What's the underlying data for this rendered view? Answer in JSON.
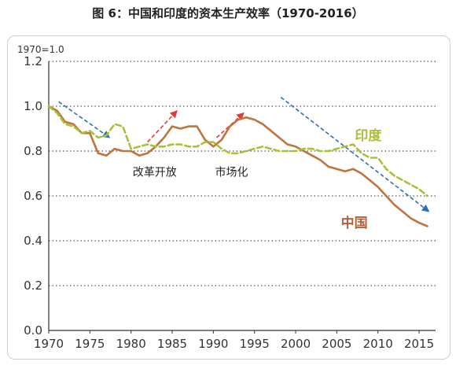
{
  "title": "图 6：中国和印度的资本生产效率（1970-2016）",
  "chart_data": {
    "type": "line",
    "unit_label": "1970=1.0",
    "xlim": [
      1970,
      2017
    ],
    "ylim": [
      0,
      1.2
    ],
    "x_ticks": [
      "1970",
      "1975",
      "1980",
      "1985",
      "1990",
      "1995",
      "2000",
      "2005",
      "2010",
      "2015"
    ],
    "y_ticks": [
      "0.0",
      "0.2",
      "0.4",
      "0.6",
      "0.8",
      "1.0",
      "1.2"
    ],
    "grid": "horizontal dotted",
    "series": [
      {
        "name": "中国",
        "color": "#c0733c",
        "style": "solid",
        "x": [
          1970,
          1971,
          1972,
          1973,
          1974,
          1975,
          1976,
          1977,
          1978,
          1979,
          1980,
          1981,
          1982,
          1983,
          1984,
          1985,
          1986,
          1987,
          1988,
          1989,
          1990,
          1991,
          1992,
          1993,
          1994,
          1995,
          1996,
          1997,
          1998,
          1999,
          2000,
          2001,
          2002,
          2003,
          2004,
          2005,
          2006,
          2007,
          2008,
          2009,
          2010,
          2011,
          2012,
          2013,
          2014,
          2015,
          2016
        ],
        "values": [
          1.0,
          0.98,
          0.93,
          0.92,
          0.88,
          0.88,
          0.79,
          0.78,
          0.81,
          0.8,
          0.8,
          0.78,
          0.79,
          0.82,
          0.86,
          0.91,
          0.9,
          0.91,
          0.91,
          0.85,
          0.82,
          0.85,
          0.91,
          0.94,
          0.95,
          0.94,
          0.92,
          0.89,
          0.86,
          0.83,
          0.82,
          0.8,
          0.78,
          0.76,
          0.73,
          0.72,
          0.71,
          0.72,
          0.7,
          0.67,
          0.64,
          0.6,
          0.56,
          0.53,
          0.5,
          0.48,
          0.465
        ]
      },
      {
        "name": "印度",
        "color": "#a8c13a",
        "style": "dashed",
        "x": [
          1970,
          1971,
          1972,
          1973,
          1974,
          1975,
          1976,
          1977,
          1978,
          1979,
          1980,
          1981,
          1982,
          1983,
          1984,
          1985,
          1986,
          1987,
          1988,
          1989,
          1990,
          1991,
          1992,
          1993,
          1994,
          1995,
          1996,
          1997,
          1998,
          1999,
          2000,
          2001,
          2002,
          2003,
          2004,
          2005,
          2006,
          2007,
          2008,
          2009,
          2010,
          2011,
          2012,
          2013,
          2014,
          2015,
          2016
        ],
        "values": [
          1.0,
          0.97,
          0.92,
          0.91,
          0.88,
          0.89,
          0.86,
          0.87,
          0.92,
          0.91,
          0.81,
          0.82,
          0.83,
          0.82,
          0.82,
          0.83,
          0.83,
          0.82,
          0.82,
          0.84,
          0.84,
          0.81,
          0.79,
          0.79,
          0.8,
          0.81,
          0.82,
          0.81,
          0.8,
          0.8,
          0.8,
          0.81,
          0.81,
          0.8,
          0.8,
          0.81,
          0.82,
          0.83,
          0.79,
          0.77,
          0.77,
          0.72,
          0.69,
          0.67,
          0.65,
          0.63,
          0.6
        ]
      }
    ],
    "series_labels": [
      {
        "text": "中国",
        "x": 2005.5,
        "y": 0.46,
        "color": "#b3623a"
      },
      {
        "text": "印度",
        "x": 2007.2,
        "y": 0.85,
        "color": "#a8c13a"
      }
    ],
    "annotations": [
      {
        "text": "改革开放",
        "x": 1980.2,
        "y": 0.69
      },
      {
        "text": "市场化",
        "x": 1990.2,
        "y": 0.69
      }
    ],
    "trend_arrows": [
      {
        "from": [
          1971.2,
          1.02
        ],
        "to": [
          1977.4,
          0.86
        ],
        "color": "#2f6fb3"
      },
      {
        "from": [
          1982.0,
          0.84
        ],
        "to": [
          1985.6,
          0.98
        ],
        "color": "#e23a3a"
      },
      {
        "from": [
          1990.4,
          0.86
        ],
        "to": [
          1993.7,
          0.97
        ],
        "color": "#e23a3a"
      },
      {
        "from": [
          1998.2,
          1.04
        ],
        "to": [
          2016.2,
          0.53
        ],
        "color": "#2f6fb3"
      }
    ]
  }
}
